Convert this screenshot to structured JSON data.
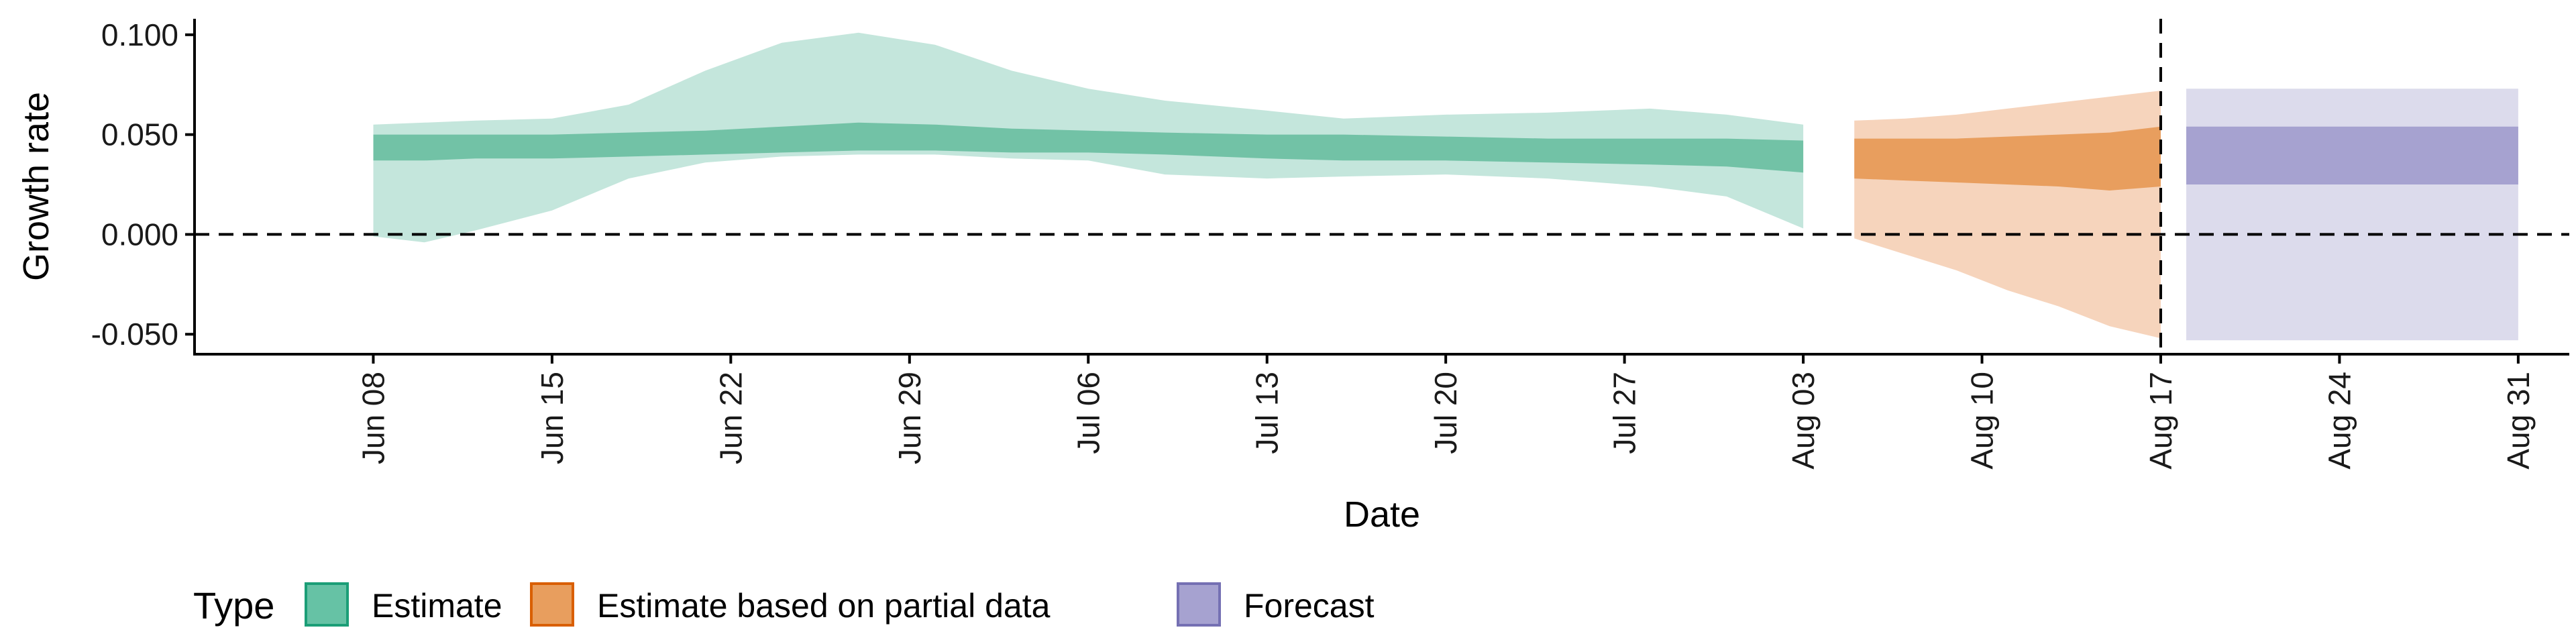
{
  "chart_data": {
    "type": "area",
    "xlabel": "Date",
    "ylabel": "Growth rate",
    "xlim": [
      "2021-06-01",
      "2021-09-02"
    ],
    "ylim": [
      -0.06,
      0.108
    ],
    "y_ticks": [
      -0.05,
      0.0,
      0.05,
      0.1
    ],
    "y_tick_labels": [
      "-0.050",
      "0.000",
      "0.050",
      "0.100"
    ],
    "x_ticks": [
      "2021-06-08",
      "2021-06-15",
      "2021-06-22",
      "2021-06-29",
      "2021-07-06",
      "2021-07-13",
      "2021-07-20",
      "2021-07-27",
      "2021-08-03",
      "2021-08-10",
      "2021-08-17",
      "2021-08-24",
      "2021-08-31"
    ],
    "x_tick_labels": [
      "Jun 08",
      "Jun 15",
      "Jun 22",
      "Jun 29",
      "Jul 06",
      "Jul 13",
      "Jul 20",
      "Jul 27",
      "Aug 03",
      "Aug 10",
      "Aug 17",
      "Aug 24",
      "Aug 31"
    ],
    "reference_lines": {
      "hline_y": 0.0,
      "vline_x": "2021-08-17"
    },
    "grid": false,
    "legend": {
      "title": "Type",
      "position": "bottom-left",
      "entries": [
        {
          "label": "Estimate",
          "fill": "#66C2A5",
          "stroke": "#1B9E77"
        },
        {
          "label": "Estimate based on partial data",
          "fill": "#E89E5E",
          "stroke": "#D95F02"
        },
        {
          "label": "Forecast",
          "fill": "#A6A2D0",
          "stroke": "#7570B3"
        }
      ]
    },
    "series": [
      {
        "name": "Estimate",
        "outer_color": "#c4e6dc",
        "inner_color": "#72c2a6",
        "points": [
          {
            "x": "2021-06-08",
            "outer_low": -0.001,
            "inner_low": 0.037,
            "inner_high": 0.05,
            "outer_high": 0.055
          },
          {
            "x": "2021-06-10",
            "outer_low": -0.004,
            "inner_low": 0.037,
            "inner_high": 0.05,
            "outer_high": 0.056
          },
          {
            "x": "2021-06-12",
            "outer_low": 0.002,
            "inner_low": 0.038,
            "inner_high": 0.05,
            "outer_high": 0.057
          },
          {
            "x": "2021-06-15",
            "outer_low": 0.012,
            "inner_low": 0.038,
            "inner_high": 0.05,
            "outer_high": 0.058
          },
          {
            "x": "2021-06-18",
            "outer_low": 0.028,
            "inner_low": 0.039,
            "inner_high": 0.051,
            "outer_high": 0.065
          },
          {
            "x": "2021-06-21",
            "outer_low": 0.036,
            "inner_low": 0.04,
            "inner_high": 0.052,
            "outer_high": 0.082
          },
          {
            "x": "2021-06-24",
            "outer_low": 0.039,
            "inner_low": 0.041,
            "inner_high": 0.054,
            "outer_high": 0.096
          },
          {
            "x": "2021-06-27",
            "outer_low": 0.04,
            "inner_low": 0.042,
            "inner_high": 0.056,
            "outer_high": 0.101
          },
          {
            "x": "2021-06-30",
            "outer_low": 0.04,
            "inner_low": 0.042,
            "inner_high": 0.055,
            "outer_high": 0.095
          },
          {
            "x": "2021-07-03",
            "outer_low": 0.038,
            "inner_low": 0.041,
            "inner_high": 0.053,
            "outer_high": 0.082
          },
          {
            "x": "2021-07-06",
            "outer_low": 0.037,
            "inner_low": 0.041,
            "inner_high": 0.052,
            "outer_high": 0.073
          },
          {
            "x": "2021-07-09",
            "outer_low": 0.03,
            "inner_low": 0.04,
            "inner_high": 0.051,
            "outer_high": 0.067
          },
          {
            "x": "2021-07-13",
            "outer_low": 0.028,
            "inner_low": 0.038,
            "inner_high": 0.05,
            "outer_high": 0.062
          },
          {
            "x": "2021-07-16",
            "outer_low": 0.029,
            "inner_low": 0.037,
            "inner_high": 0.05,
            "outer_high": 0.058
          },
          {
            "x": "2021-07-20",
            "outer_low": 0.03,
            "inner_low": 0.037,
            "inner_high": 0.049,
            "outer_high": 0.06
          },
          {
            "x": "2021-07-24",
            "outer_low": 0.028,
            "inner_low": 0.036,
            "inner_high": 0.048,
            "outer_high": 0.061
          },
          {
            "x": "2021-07-28",
            "outer_low": 0.024,
            "inner_low": 0.035,
            "inner_high": 0.048,
            "outer_high": 0.063
          },
          {
            "x": "2021-07-31",
            "outer_low": 0.019,
            "inner_low": 0.034,
            "inner_high": 0.048,
            "outer_high": 0.06
          },
          {
            "x": "2021-08-03",
            "outer_low": 0.003,
            "inner_low": 0.031,
            "inner_high": 0.047,
            "outer_high": 0.055
          }
        ]
      },
      {
        "name": "Estimate based on partial data",
        "outer_color": "#f6d4bc",
        "inner_color": "#e89e5e",
        "points": [
          {
            "x": "2021-08-05",
            "outer_low": -0.002,
            "inner_low": 0.028,
            "inner_high": 0.048,
            "outer_high": 0.057
          },
          {
            "x": "2021-08-07",
            "outer_low": -0.01,
            "inner_low": 0.027,
            "inner_high": 0.048,
            "outer_high": 0.058
          },
          {
            "x": "2021-08-09",
            "outer_low": -0.018,
            "inner_low": 0.026,
            "inner_high": 0.048,
            "outer_high": 0.06
          },
          {
            "x": "2021-08-11",
            "outer_low": -0.028,
            "inner_low": 0.025,
            "inner_high": 0.049,
            "outer_high": 0.063
          },
          {
            "x": "2021-08-13",
            "outer_low": -0.036,
            "inner_low": 0.024,
            "inner_high": 0.05,
            "outer_high": 0.066
          },
          {
            "x": "2021-08-15",
            "outer_low": -0.046,
            "inner_low": 0.022,
            "inner_high": 0.051,
            "outer_high": 0.069
          },
          {
            "x": "2021-08-17",
            "outer_low": -0.052,
            "inner_low": 0.024,
            "inner_high": 0.054,
            "outer_high": 0.072
          }
        ]
      },
      {
        "name": "Forecast",
        "outer_color": "#dcdbec",
        "inner_color": "#a6a2d0",
        "points": [
          {
            "x": "2021-08-18",
            "outer_low": -0.053,
            "inner_low": 0.025,
            "inner_high": 0.054,
            "outer_high": 0.073
          },
          {
            "x": "2021-08-31",
            "outer_low": -0.053,
            "inner_low": 0.025,
            "inner_high": 0.054,
            "outer_high": 0.073
          }
        ]
      }
    ]
  }
}
